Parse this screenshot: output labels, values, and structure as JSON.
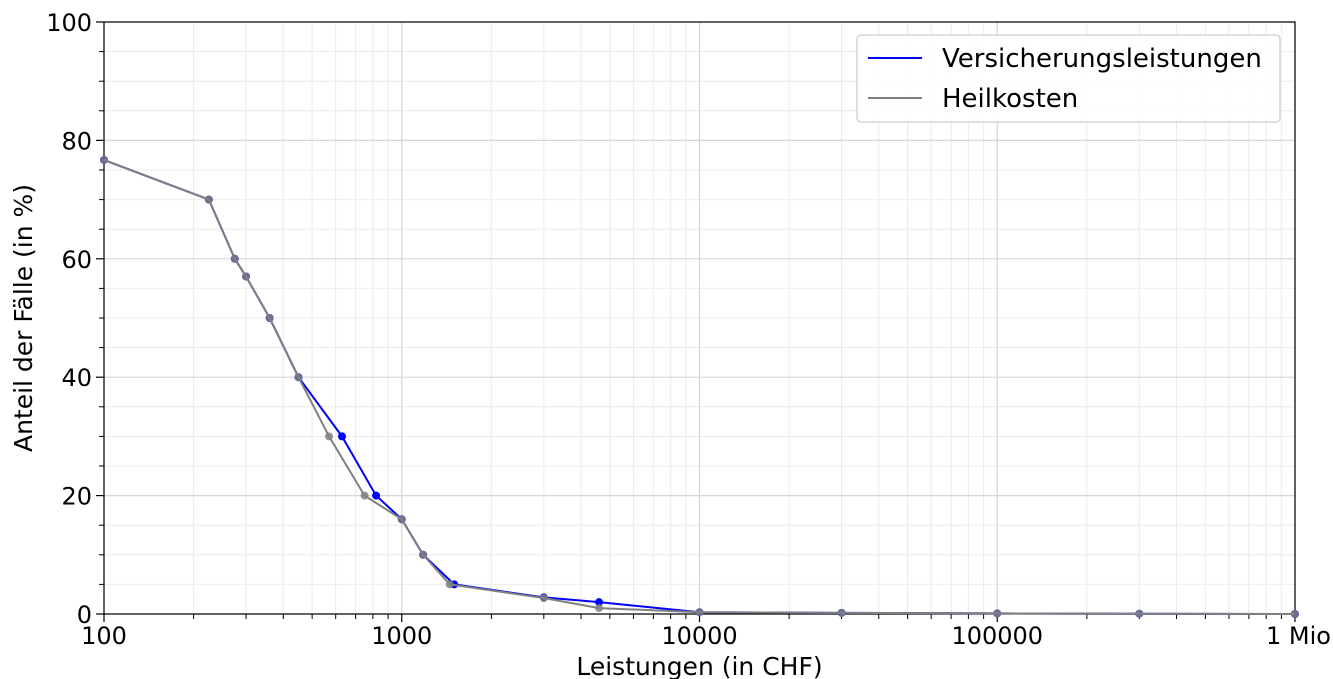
{
  "chart_data": {
    "type": "line",
    "xlabel": "Leistungen (in CHF)",
    "ylabel": "Anteil der Fälle (in %)",
    "x_scale": "log",
    "xlim": [
      100,
      1000000
    ],
    "ylim": [
      0,
      100
    ],
    "x_ticks": [
      {
        "value": 100,
        "label": "100"
      },
      {
        "value": 1000,
        "label": "1000"
      },
      {
        "value": 10000,
        "label": "10000"
      },
      {
        "value": 100000,
        "label": "100000"
      },
      {
        "value": 1000000,
        "label": "1 Mio"
      }
    ],
    "y_ticks": [
      {
        "value": 0,
        "label": "0"
      },
      {
        "value": 20,
        "label": "20"
      },
      {
        "value": 40,
        "label": "40"
      },
      {
        "value": 60,
        "label": "60"
      },
      {
        "value": 80,
        "label": "80"
      },
      {
        "value": 100,
        "label": "100"
      }
    ],
    "grid": true,
    "legend_position": "top-right",
    "series": [
      {
        "name": "Versicherungsleistungen",
        "color": "#0000ff",
        "points": [
          [
            100,
            76.7
          ],
          [
            225,
            70
          ],
          [
            275,
            60
          ],
          [
            300,
            57
          ],
          [
            360,
            50
          ],
          [
            450,
            40
          ],
          [
            630,
            30
          ],
          [
            820,
            20
          ],
          [
            1000,
            16
          ],
          [
            1180,
            10
          ],
          [
            1500,
            5
          ],
          [
            3000,
            2.8
          ],
          [
            4600,
            2
          ],
          [
            10000,
            0.3
          ],
          [
            30000,
            0.2
          ],
          [
            100000,
            0.1
          ],
          [
            300000,
            0.05
          ],
          [
            1000000,
            0
          ]
        ]
      },
      {
        "name": "Heilkosten",
        "color": "#808080",
        "points": [
          [
            100,
            76.7
          ],
          [
            225,
            70
          ],
          [
            275,
            60
          ],
          [
            300,
            57
          ],
          [
            360,
            50
          ],
          [
            450,
            40
          ],
          [
            570,
            30
          ],
          [
            750,
            20
          ],
          [
            1000,
            16
          ],
          [
            1180,
            10
          ],
          [
            1450,
            5
          ],
          [
            3000,
            2.7
          ],
          [
            4600,
            1
          ],
          [
            10000,
            0.3
          ],
          [
            30000,
            0.2
          ],
          [
            100000,
            0.1
          ],
          [
            300000,
            0.05
          ],
          [
            1000000,
            0
          ]
        ]
      }
    ]
  }
}
